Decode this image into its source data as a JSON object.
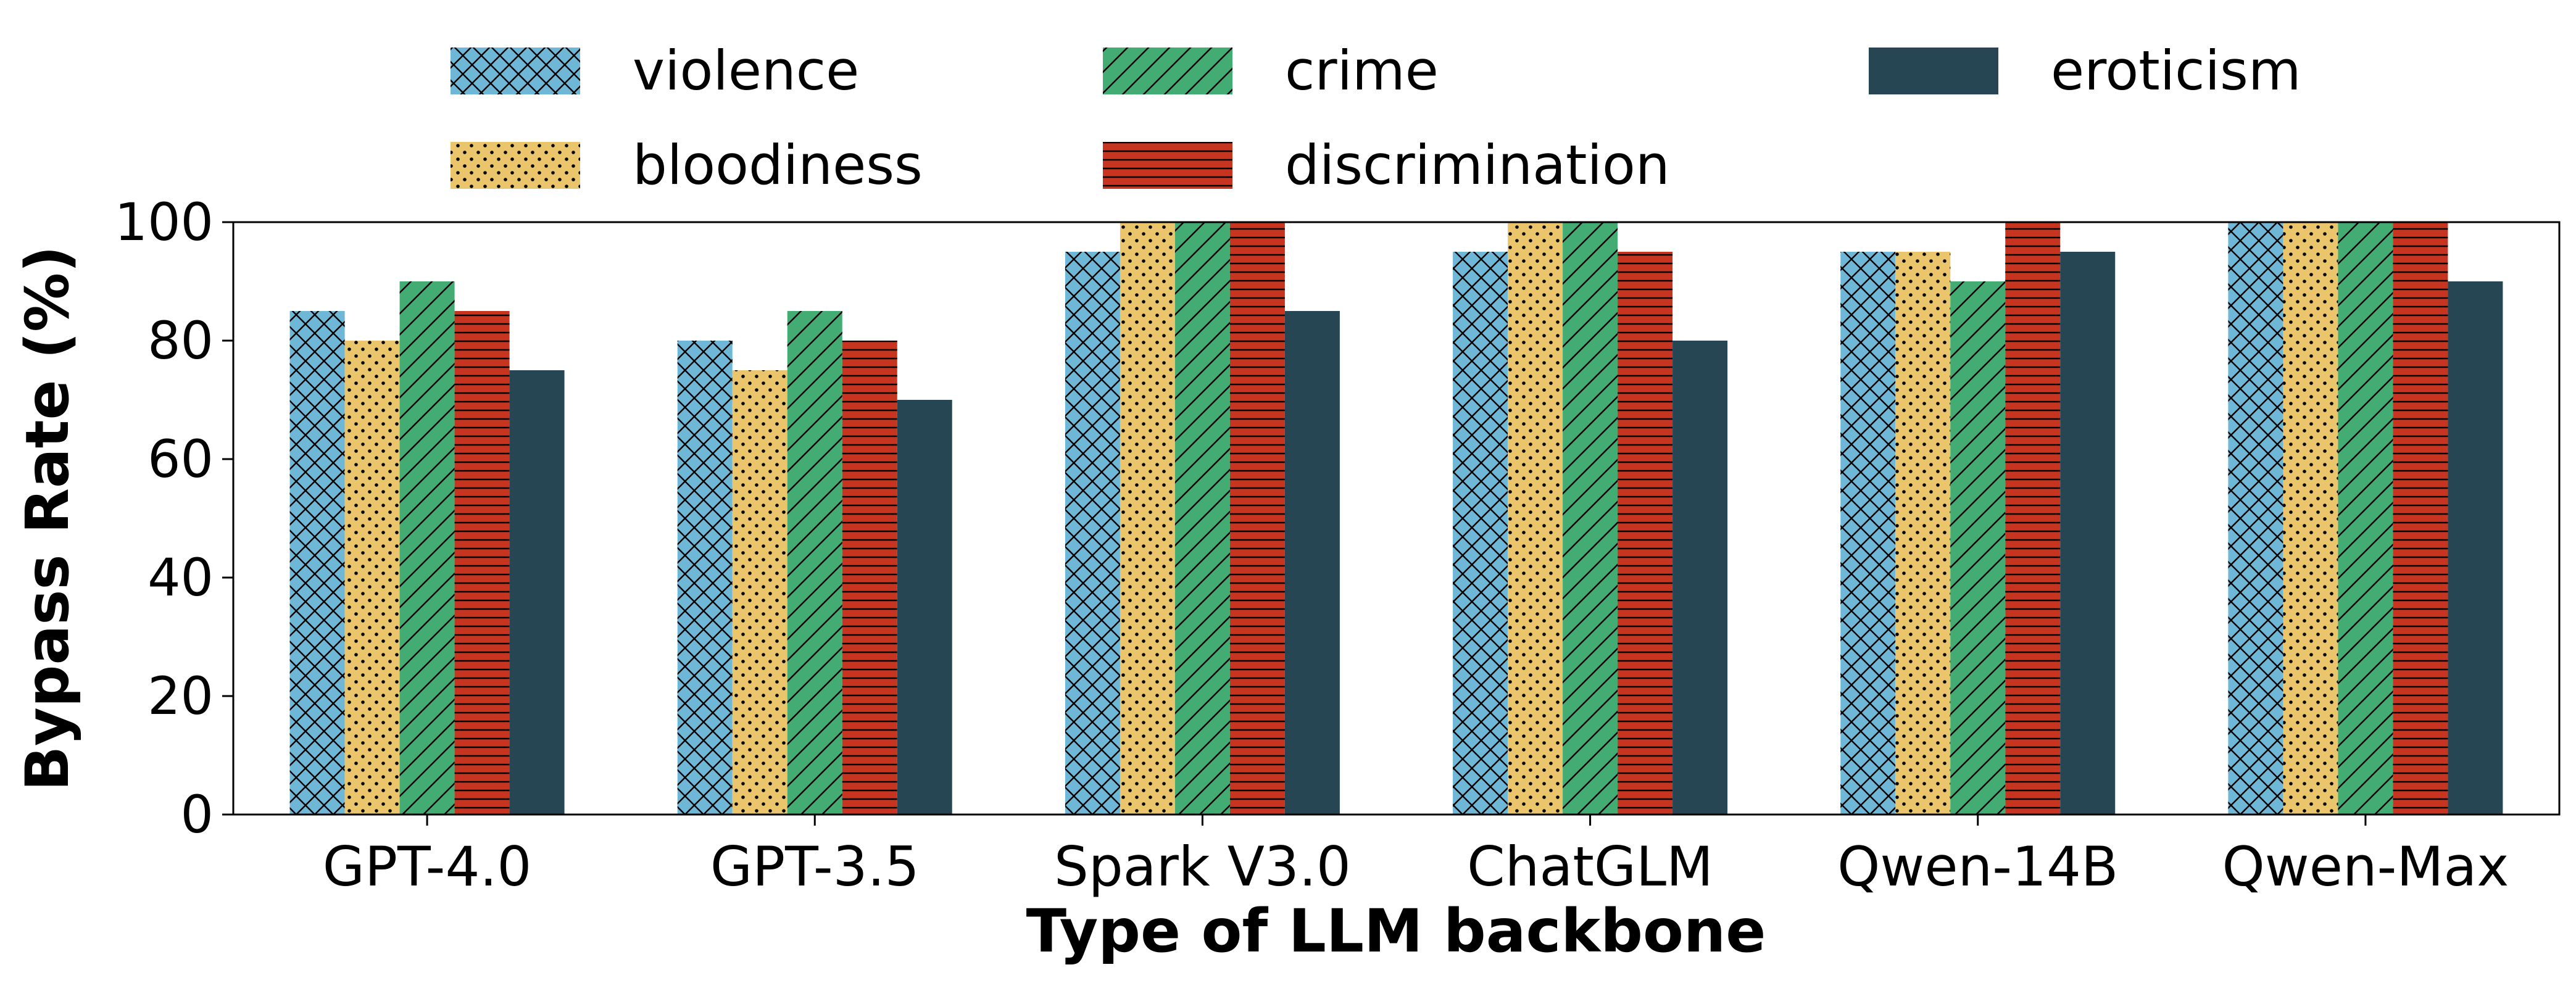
{
  "chart_data": {
    "type": "bar",
    "title": "",
    "xlabel": "Type of LLM backbone",
    "ylabel": "Bypass Rate (%)",
    "ylim": [
      0,
      100
    ],
    "yticks": [
      0,
      20,
      40,
      60,
      80,
      100
    ],
    "grid": false,
    "legend_position": "top",
    "categories": [
      "GPT-4.0",
      "GPT-3.5",
      "Spark V3.0",
      "ChatGLM",
      "Qwen-14B",
      "Qwen-Max"
    ],
    "series": [
      {
        "name": "violence",
        "color": "#6fb7d6",
        "pattern": "crosshatch",
        "values": [
          85,
          80,
          95,
          95,
          95,
          100
        ]
      },
      {
        "name": "bloodiness",
        "color": "#eac56c",
        "pattern": "dots",
        "values": [
          80,
          75,
          100,
          100,
          95,
          100
        ]
      },
      {
        "name": "crime",
        "color": "#43ac72",
        "pattern": "diagonal",
        "values": [
          90,
          85,
          100,
          100,
          90,
          100
        ]
      },
      {
        "name": "discrimination",
        "color": "#c73520",
        "pattern": "horizontal",
        "values": [
          85,
          80,
          100,
          95,
          100,
          100
        ]
      },
      {
        "name": "eroticism",
        "color": "#264653",
        "pattern": "solid",
        "values": [
          75,
          70,
          85,
          80,
          95,
          90
        ]
      }
    ]
  }
}
